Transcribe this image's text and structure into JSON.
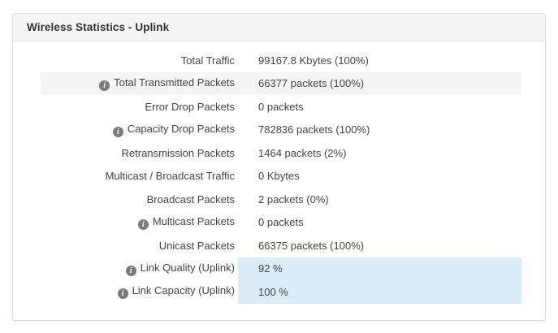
{
  "panel": {
    "title": "Wireless Statistics - Uplink",
    "info_icon_glyph": "i",
    "rows": [
      {
        "label": "Total Traffic",
        "value": "99167.8 Kbytes (100%)",
        "info": false,
        "striped": false,
        "value_highlight": false
      },
      {
        "label": "Total Transmitted Packets",
        "value": "66377 packets (100%)",
        "info": true,
        "striped": true,
        "value_highlight": false
      },
      {
        "label": "Error Drop Packets",
        "value": "0 packets",
        "info": false,
        "striped": false,
        "value_highlight": false
      },
      {
        "label": "Capacity Drop Packets",
        "value": "782836 packets (100%)",
        "info": true,
        "striped": false,
        "value_highlight": false
      },
      {
        "label": "Retransmission Packets",
        "value": "1464 packets (2%)",
        "info": false,
        "striped": false,
        "value_highlight": false
      },
      {
        "label": "Multicast / Broadcast Traffic",
        "value": "0 Kbytes",
        "info": false,
        "striped": false,
        "value_highlight": false
      },
      {
        "label": "Broadcast Packets",
        "value": "2 packets (0%)",
        "info": false,
        "striped": false,
        "value_highlight": false
      },
      {
        "label": "Multicast Packets",
        "value": "0 packets",
        "info": true,
        "striped": false,
        "value_highlight": false
      },
      {
        "label": "Unicast Packets",
        "value": "66375 packets (100%)",
        "info": false,
        "striped": false,
        "value_highlight": false
      },
      {
        "label": "Link Quality (Uplink)",
        "value": "92 %",
        "info": true,
        "striped": false,
        "value_highlight": true
      },
      {
        "label": "Link Capacity (Uplink)",
        "value": "100 %",
        "info": true,
        "striped": false,
        "value_highlight": true
      }
    ]
  },
  "colors": {
    "page_bg": "#ffffff",
    "panel_border": "#dcdcdc",
    "header_bg": "#f5f5f5",
    "title_text": "#333333",
    "row_text": "#444444",
    "stripe_bg": "#f5f5f5",
    "highlight_bg": "#d9edf7",
    "highlight_text": "#31708f",
    "info_icon_bg": "#7b7b7b"
  }
}
